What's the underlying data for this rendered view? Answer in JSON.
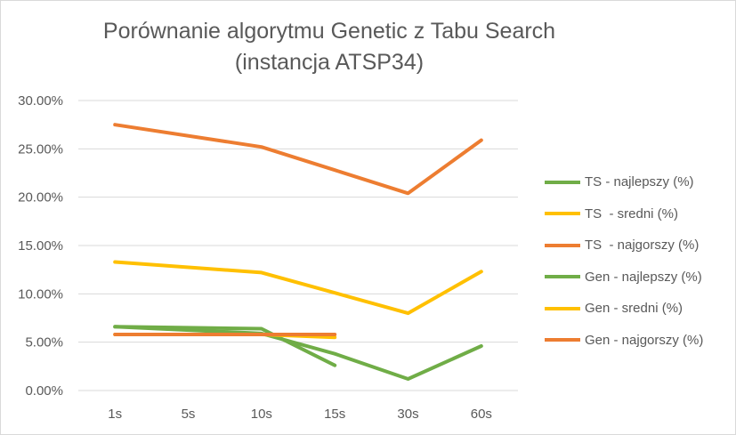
{
  "chart_data": {
    "type": "line",
    "title_line1": "Porównanie algorytmu Genetic z Tabu Search",
    "title_line2": "(instancja ATSP34)",
    "xlabel": "",
    "ylabel": "",
    "categories": [
      "1s",
      "5s",
      "10s",
      "15s",
      "30s",
      "60s"
    ],
    "y_ticks": [
      "0.00%",
      "5.00%",
      "10.00%",
      "15.00%",
      "20.00%",
      "25.00%",
      "30.00%"
    ],
    "ylim": [
      0,
      30
    ],
    "grid": "horizontal",
    "legend_position": "right",
    "series": [
      {
        "name": "TS - najlepszy (%)",
        "color": "#70ad47",
        "values": [
          6.6,
          null,
          5.9,
          3.8,
          1.2,
          4.6
        ]
      },
      {
        "name": "TS  - sredni (%)",
        "color": "#ffc000",
        "values": [
          13.3,
          null,
          12.2,
          10.1,
          8.0,
          12.3
        ]
      },
      {
        "name": "TS  - najgorszy (%)",
        "color": "#ed7d31",
        "values": [
          27.5,
          null,
          25.2,
          22.8,
          20.4,
          25.9
        ]
      },
      {
        "name": "Gen - najlepszy (%)",
        "color": "#70ad47",
        "values": [
          6.6,
          6.5,
          6.4,
          2.6,
          null,
          null
        ]
      },
      {
        "name": "Gen - sredni (%)",
        "color": "#ffc000",
        "values": [
          5.8,
          5.8,
          5.8,
          5.5,
          null,
          null
        ]
      },
      {
        "name": "Gen - najgorszy (%)",
        "color": "#ed7d31",
        "values": [
          5.8,
          5.8,
          5.8,
          5.8,
          null,
          null
        ]
      }
    ]
  }
}
